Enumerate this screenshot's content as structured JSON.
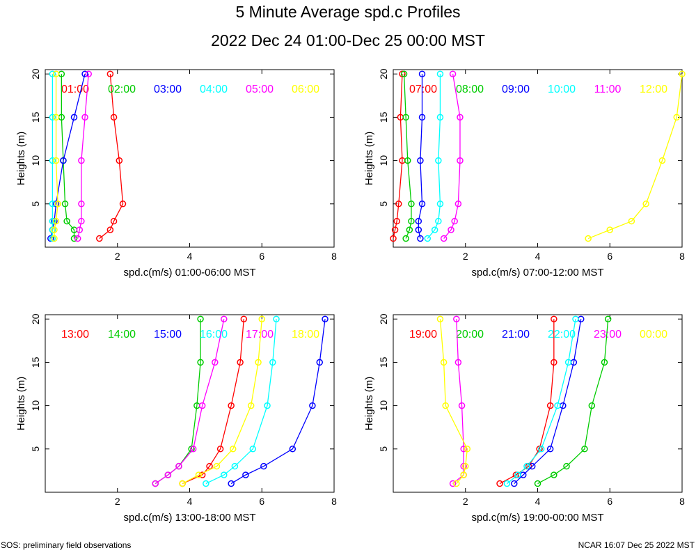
{
  "header": {
    "title": "5 Minute Average spd.c Profiles",
    "subtitle": "2022 Dec 24 01:00-Dec 25 00:00 MST"
  },
  "footer": {
    "left": "SOS: preliminary field observations",
    "right": "NCAR 16:07 Dec 25 2022 MST"
  },
  "colors": [
    "#ff0000",
    "#00cc00",
    "#0000ff",
    "#00ffff",
    "#ff00ff",
    "#ffff00"
  ],
  "chart_data": [
    {
      "type": "line",
      "xlabel": "spd.c(m/s) 01:00-06:00 MST",
      "ylabel": "Heights (m)",
      "xlim": [
        0,
        8
      ],
      "ylim": [
        0,
        20.5
      ],
      "xticks": [
        2,
        4,
        6,
        8
      ],
      "yticks": [
        5,
        10,
        15,
        20
      ],
      "heights": [
        1,
        2,
        3,
        5,
        10,
        15,
        20
      ],
      "series": [
        {
          "name": "01:00",
          "values": [
            1.5,
            1.8,
            1.9,
            2.15,
            2.05,
            1.9,
            1.8
          ]
        },
        {
          "name": "02:00",
          "values": [
            0.8,
            0.8,
            0.6,
            0.55,
            0.5,
            0.45,
            0.45
          ]
        },
        {
          "name": "03:00",
          "values": [
            0.15,
            0.2,
            0.25,
            0.3,
            0.5,
            0.8,
            1.1
          ]
        },
        {
          "name": "04:00",
          "values": [
            0.2,
            0.2,
            0.2,
            0.2,
            0.2,
            0.2,
            0.2
          ]
        },
        {
          "name": "05:00",
          "values": [
            0.9,
            0.95,
            1.0,
            1.0,
            1.0,
            1.1,
            1.2
          ]
        },
        {
          "name": "06:00",
          "values": [
            0.25,
            0.25,
            0.3,
            0.35,
            0.3,
            0.3,
            0.3
          ]
        }
      ]
    },
    {
      "type": "line",
      "xlabel": "spd.c(m/s) 07:00-12:00 MST",
      "ylabel": "Heights (m)",
      "xlim": [
        0,
        8
      ],
      "ylim": [
        0,
        20.5
      ],
      "xticks": [
        2,
        4,
        6,
        8
      ],
      "yticks": [
        5,
        10,
        15,
        20
      ],
      "heights": [
        1,
        2,
        3,
        5,
        10,
        15,
        20
      ],
      "series": [
        {
          "name": "07:00",
          "values": [
            0.0,
            0.05,
            0.1,
            0.15,
            0.25,
            0.2,
            0.25
          ]
        },
        {
          "name": "08:00",
          "values": [
            0.35,
            0.45,
            0.5,
            0.5,
            0.4,
            0.35,
            0.3
          ]
        },
        {
          "name": "09:00",
          "values": [
            0.75,
            0.7,
            0.7,
            0.8,
            0.75,
            0.8,
            0.8
          ]
        },
        {
          "name": "10:00",
          "values": [
            0.95,
            1.15,
            1.25,
            1.3,
            1.25,
            1.3,
            1.3
          ]
        },
        {
          "name": "11:00",
          "values": [
            1.4,
            1.6,
            1.7,
            1.8,
            1.85,
            1.85,
            1.65
          ]
        },
        {
          "name": "12:00",
          "values": [
            5.4,
            6.0,
            6.6,
            7.0,
            7.45,
            7.85,
            8.0
          ]
        }
      ]
    },
    {
      "type": "line",
      "xlabel": "spd.c(m/s) 13:00-18:00 MST",
      "ylabel": "Heights (m)",
      "xlim": [
        0,
        8
      ],
      "ylim": [
        0,
        20.5
      ],
      "xticks": [
        2,
        4,
        6,
        8
      ],
      "yticks": [
        5,
        10,
        15,
        20
      ],
      "heights": [
        1,
        2,
        3,
        5,
        10,
        15,
        20
      ],
      "series": [
        {
          "name": "13:00",
          "values": [
            3.8,
            4.35,
            4.55,
            4.85,
            5.15,
            5.4,
            5.5
          ]
        },
        {
          "name": "14:00",
          "values": [
            3.05,
            3.4,
            3.7,
            4.05,
            4.2,
            4.3,
            4.3
          ]
        },
        {
          "name": "15:00",
          "values": [
            5.15,
            5.55,
            6.05,
            6.85,
            7.4,
            7.6,
            7.75
          ]
        },
        {
          "name": "16:00",
          "values": [
            4.45,
            4.95,
            5.25,
            5.75,
            6.15,
            6.3,
            6.4
          ]
        },
        {
          "name": "17:00",
          "values": [
            3.05,
            3.4,
            3.7,
            4.1,
            4.35,
            4.7,
            4.95
          ]
        },
        {
          "name": "18:00",
          "values": [
            3.8,
            4.25,
            4.75,
            5.2,
            5.7,
            5.9,
            6.0
          ]
        }
      ]
    },
    {
      "type": "line",
      "xlabel": "spd.c(m/s) 19:00-00:00 MST",
      "ylabel": "Heights (m)",
      "xlim": [
        0,
        8
      ],
      "ylim": [
        0,
        20.5
      ],
      "xticks": [
        2,
        4,
        6,
        8
      ],
      "yticks": [
        5,
        10,
        15,
        20
      ],
      "heights": [
        1,
        2,
        3,
        5,
        10,
        15,
        20
      ],
      "series": [
        {
          "name": "19:00",
          "values": [
            2.95,
            3.4,
            3.75,
            4.05,
            4.35,
            4.45,
            4.45
          ]
        },
        {
          "name": "20:00",
          "values": [
            4.0,
            4.45,
            4.8,
            5.3,
            5.5,
            5.85,
            5.95
          ]
        },
        {
          "name": "21:00",
          "values": [
            3.35,
            3.6,
            3.85,
            4.35,
            4.7,
            5.0,
            5.2
          ]
        },
        {
          "name": "22:00",
          "values": [
            3.15,
            3.45,
            3.7,
            4.1,
            4.55,
            4.85,
            5.05
          ]
        },
        {
          "name": "23:00",
          "values": [
            1.65,
            1.95,
            1.95,
            1.95,
            1.9,
            1.8,
            1.75
          ]
        },
        {
          "name": "00:00",
          "values": [
            1.75,
            1.95,
            2.0,
            2.05,
            1.45,
            1.4,
            1.3
          ]
        }
      ]
    }
  ]
}
